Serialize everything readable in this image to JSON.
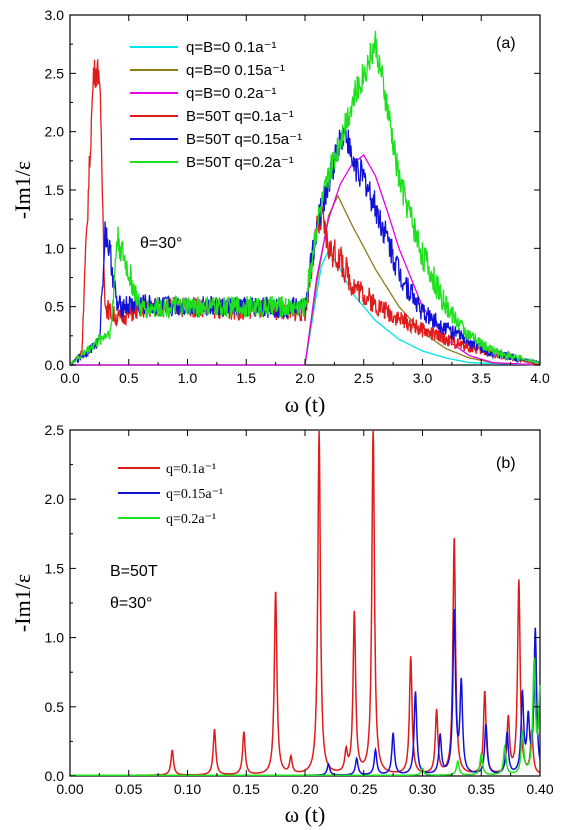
{
  "chart_data": [
    {
      "type": "line",
      "panel_label": "(a)",
      "xlabel": "ω (t)",
      "ylabel": "-Im1/ε",
      "xlim": [
        0.0,
        4.0
      ],
      "ylim": [
        0.0,
        3.0
      ],
      "xticks": [
        "0.0",
        "0.5",
        "1.0",
        "1.5",
        "2.0",
        "2.5",
        "3.0",
        "3.5",
        "4.0"
      ],
      "yticks": [
        "0.0",
        "0.5",
        "1.0",
        "1.5",
        "2.0",
        "2.5",
        "3.0"
      ],
      "annotation": "θ=30°",
      "legend_position": "top-left",
      "series": [
        {
          "name": "q=B=0 0.1a⁻¹",
          "color": "#00e5e5",
          "x": [
            0,
            2.0,
            2.08,
            2.14,
            2.2,
            2.3,
            2.4,
            2.6,
            2.8,
            3.0,
            3.2,
            3.4,
            4.0
          ],
          "y": [
            0,
            0,
            0.5,
            0.85,
            0.98,
            0.82,
            0.62,
            0.38,
            0.22,
            0.12,
            0.06,
            0.02,
            0
          ]
        },
        {
          "name": "q=B=0 0.15a⁻¹",
          "color": "#8b7d1a",
          "x": [
            0,
            2.0,
            2.1,
            2.2,
            2.28,
            2.4,
            2.6,
            2.8,
            3.0,
            3.2,
            3.4,
            3.6,
            4.0
          ],
          "y": [
            0,
            0,
            0.7,
            1.28,
            1.45,
            1.2,
            0.82,
            0.5,
            0.28,
            0.14,
            0.06,
            0.02,
            0
          ]
        },
        {
          "name": "q=B=0 0.2a⁻¹",
          "color": "#e600e6",
          "x": [
            0,
            2.0,
            2.1,
            2.2,
            2.3,
            2.4,
            2.5,
            2.6,
            2.7,
            2.8,
            3.0,
            3.2,
            3.4,
            3.6,
            4.0
          ],
          "y": [
            0,
            0,
            0.75,
            1.25,
            1.55,
            1.72,
            1.8,
            1.62,
            1.32,
            1.0,
            0.5,
            0.22,
            0.08,
            0.02,
            0
          ]
        },
        {
          "name": "B=50T q=0.1a⁻¹",
          "color": "#e01b1b",
          "x": [
            0,
            0.1,
            0.15,
            0.2,
            0.25,
            0.3,
            0.35,
            0.4,
            0.6,
            0.8,
            1.0,
            1.2,
            1.4,
            1.6,
            1.8,
            2.0,
            2.1,
            2.15,
            2.2,
            2.3,
            2.4,
            2.6,
            2.8,
            3.0,
            3.2,
            3.4,
            3.6,
            3.8,
            4.0
          ],
          "y": [
            0,
            0.1,
            1.33,
            2.5,
            2.53,
            0.5,
            0.45,
            0.4,
            0.48,
            0.5,
            0.5,
            0.49,
            0.47,
            0.48,
            0.47,
            0.45,
            1.15,
            1.25,
            1.0,
            0.9,
            0.7,
            0.52,
            0.4,
            0.3,
            0.22,
            0.15,
            0.1,
            0.05,
            0
          ]
        },
        {
          "name": "B=50T q=0.15a⁻¹",
          "color": "#1212d6",
          "x": [
            0,
            0.25,
            0.3,
            0.35,
            0.4,
            0.6,
            0.8,
            1.0,
            1.2,
            1.4,
            1.6,
            1.8,
            2.0,
            2.1,
            2.2,
            2.3,
            2.35,
            2.4,
            2.5,
            2.6,
            2.8,
            3.0,
            3.2,
            3.4,
            3.6,
            3.8,
            4.0
          ],
          "y": [
            0,
            0.2,
            1.17,
            0.9,
            0.5,
            0.52,
            0.5,
            0.51,
            0.5,
            0.49,
            0.5,
            0.49,
            0.5,
            1.2,
            1.55,
            1.95,
            2.0,
            1.75,
            1.6,
            1.35,
            0.8,
            0.45,
            0.32,
            0.2,
            0.1,
            0.06,
            0.02
          ]
        },
        {
          "name": "B=50T q=0.2a⁻¹",
          "color": "#1fe01f",
          "x": [
            0,
            0.35,
            0.4,
            0.6,
            0.8,
            1.0,
            1.2,
            1.4,
            1.6,
            1.8,
            2.0,
            2.1,
            2.2,
            2.3,
            2.4,
            2.5,
            2.6,
            2.7,
            2.8,
            3.0,
            3.2,
            3.4,
            3.6,
            3.8,
            4.0
          ],
          "y": [
            0,
            0.3,
            1.1,
            0.48,
            0.5,
            0.5,
            0.5,
            0.5,
            0.5,
            0.5,
            0.5,
            1.2,
            1.6,
            1.95,
            2.25,
            2.5,
            2.76,
            2.2,
            1.6,
            0.95,
            0.5,
            0.25,
            0.12,
            0.06,
            0.02
          ]
        }
      ]
    },
    {
      "type": "line",
      "panel_label": "(b)",
      "xlabel": "ω (t)",
      "ylabel": "-Im1/ε",
      "xlim": [
        0.0,
        0.4
      ],
      "ylim": [
        0.0,
        2.5
      ],
      "xticks": [
        "0.00",
        "0.05",
        "0.10",
        "0.15",
        "0.20",
        "0.25",
        "0.30",
        "0.35",
        "0.40"
      ],
      "yticks": [
        "0.0",
        "0.5",
        "1.0",
        "1.5",
        "2.0",
        "2.5"
      ],
      "annotations": [
        "B=50T",
        "θ=30°"
      ],
      "legend_position": "top-left",
      "series": [
        {
          "name": "q=0.1a⁻¹",
          "color": "#e01b1b",
          "peaks": [
            [
              0.087,
              0.18
            ],
            [
              0.123,
              0.33
            ],
            [
              0.148,
              0.31
            ],
            [
              0.175,
              1.33
            ],
            [
              0.188,
              0.12
            ],
            [
              0.212,
              2.48
            ],
            [
              0.235,
              0.15
            ],
            [
              0.242,
              1.16
            ],
            [
              0.258,
              2.5
            ],
            [
              0.29,
              0.85
            ],
            [
              0.312,
              0.46
            ],
            [
              0.327,
              1.72
            ],
            [
              0.353,
              0.6
            ],
            [
              0.373,
              0.4
            ],
            [
              0.382,
              1.4
            ],
            [
              0.393,
              0.3
            ]
          ]
        },
        {
          "name": "q=0.15a⁻¹",
          "color": "#1212d6",
          "peaks": [
            [
              0.22,
              0.08
            ],
            [
              0.244,
              0.12
            ],
            [
              0.26,
              0.18
            ],
            [
              0.275,
              0.3
            ],
            [
              0.294,
              0.6
            ],
            [
              0.315,
              0.28
            ],
            [
              0.327,
              1.17
            ],
            [
              0.333,
              0.65
            ],
            [
              0.354,
              0.36
            ],
            [
              0.372,
              0.3
            ],
            [
              0.385,
              0.57
            ],
            [
              0.396,
              1.04
            ],
            [
              0.39,
              0.38
            ]
          ]
        },
        {
          "name": "q=0.2a⁻¹",
          "color": "#1fe01f",
          "peaks": [
            [
              0.3,
              0.05
            ],
            [
              0.33,
              0.1
            ],
            [
              0.35,
              0.15
            ],
            [
              0.37,
              0.2
            ],
            [
              0.385,
              0.3
            ],
            [
              0.395,
              0.8
            ],
            [
              0.4,
              0.6
            ]
          ]
        }
      ]
    }
  ]
}
